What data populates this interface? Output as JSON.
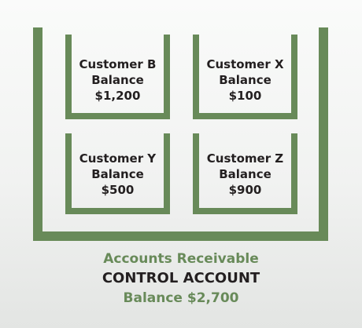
{
  "outer_container": {
    "label": "Accounts Receivable",
    "sublabel": "CONTROL ACCOUNT",
    "balance": "Balance $2,700"
  },
  "customers": [
    {
      "name": "Customer B",
      "balance_label": "Balance",
      "amount": "$1,200"
    },
    {
      "name": "Customer X",
      "balance_label": "Balance",
      "amount": "$100"
    },
    {
      "name": "Customer Y",
      "balance_label": "Balance",
      "amount": "$500"
    },
    {
      "name": "Customer Z",
      "balance_label": "Balance",
      "amount": "$900"
    }
  ],
  "colors": {
    "container": "#688a59",
    "text_dark": "#231f20",
    "text_green": "#688a59"
  }
}
